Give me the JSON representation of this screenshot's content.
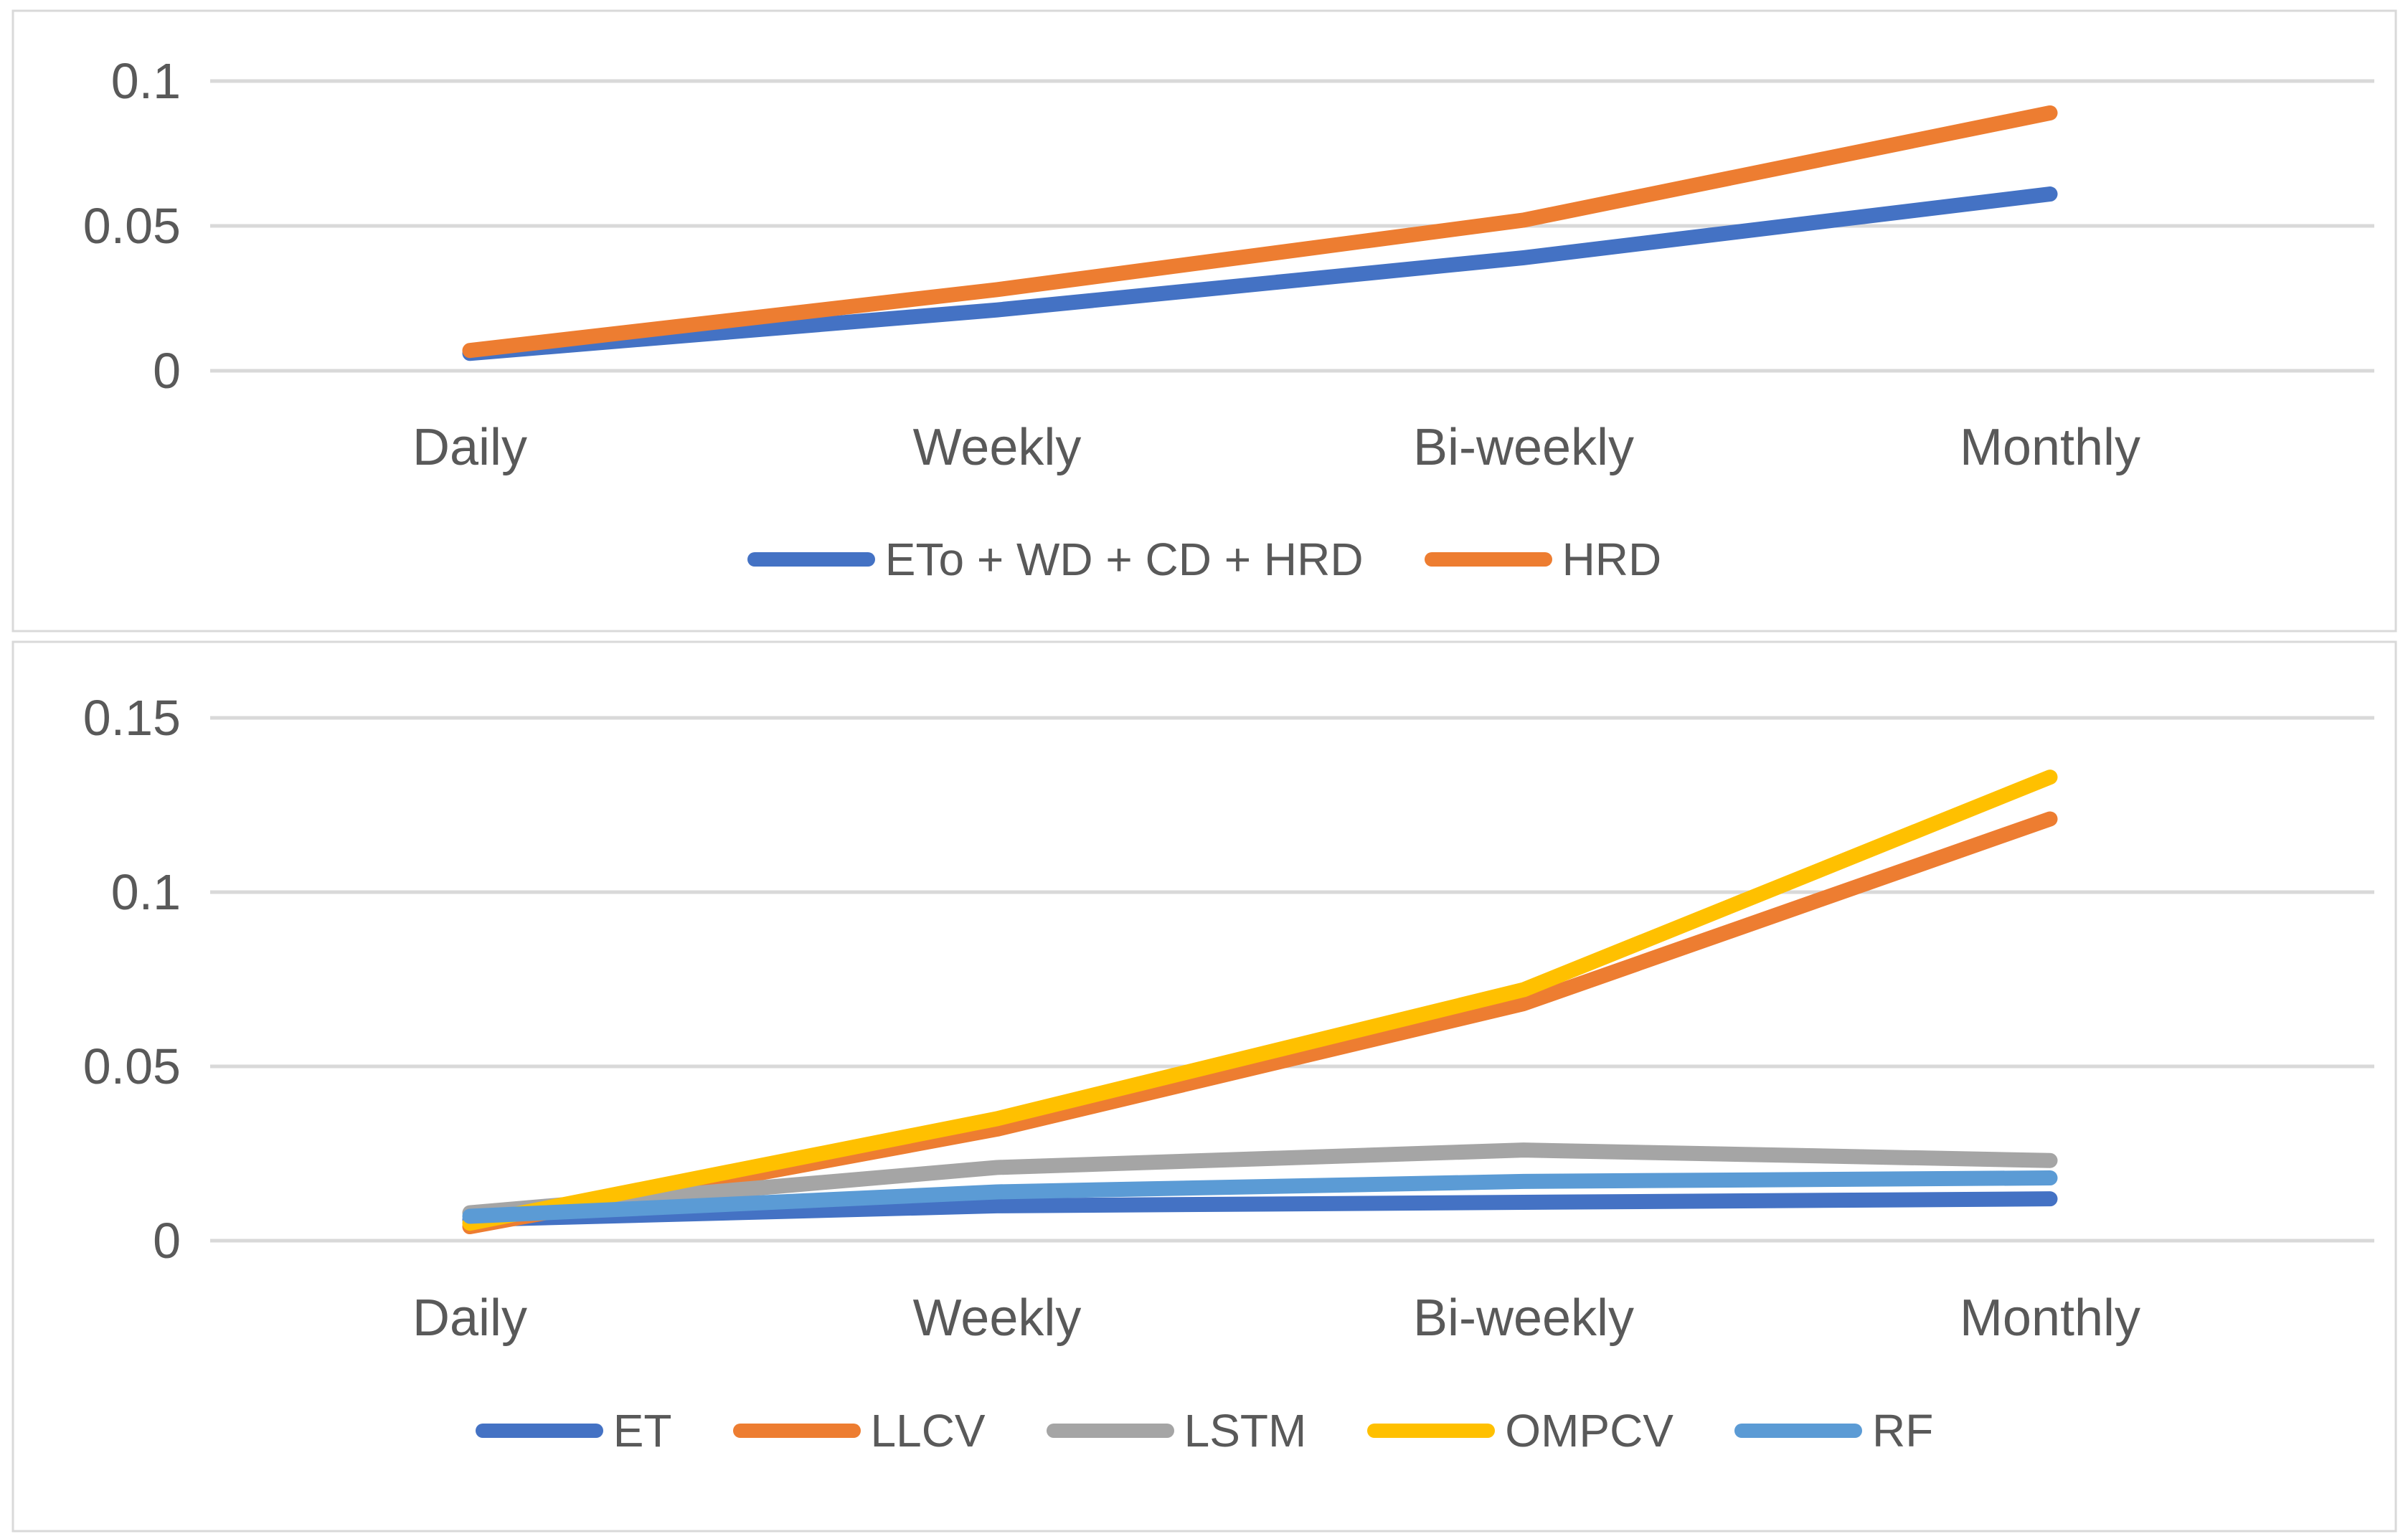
{
  "page": {
    "background": "#FFFFFF",
    "border_color": "#D9D9D9",
    "gridline_color": "#D9D9D9",
    "text_color": "#595959"
  },
  "chart_data": [
    {
      "type": "line",
      "title": "",
      "categories": [
        "Daily",
        "Weekly",
        "Bi-weekly",
        "Monthly"
      ],
      "y_ticks": [
        0,
        0.05,
        0.1
      ],
      "ylim": [
        0,
        0.1
      ],
      "grid": true,
      "legend_position": "bottom",
      "series": [
        {
          "name": "ETo + WD + CD + HRD",
          "color": "#4472C4",
          "values": [
            0.006,
            0.021,
            0.039,
            0.061
          ]
        },
        {
          "name": "HRD",
          "color": "#ED7D31",
          "values": [
            0.007,
            0.028,
            0.052,
            0.089
          ]
        }
      ]
    },
    {
      "type": "line",
      "title": "",
      "categories": [
        "Daily",
        "Weekly",
        "Bi-weekly",
        "Monthly"
      ],
      "y_ticks": [
        0,
        0.05,
        0.1,
        0.15
      ],
      "ylim": [
        0,
        0.15
      ],
      "grid": true,
      "legend_position": "bottom",
      "series": [
        {
          "name": "ET",
          "color": "#4472C4",
          "values": [
            0.006,
            0.01,
            0.011,
            0.012
          ]
        },
        {
          "name": "LLCV",
          "color": "#ED7D31",
          "values": [
            0.004,
            0.032,
            0.068,
            0.121
          ]
        },
        {
          "name": "LSTM",
          "color": "#A5A5A5",
          "values": [
            0.008,
            0.021,
            0.026,
            0.023
          ]
        },
        {
          "name": "OMPCV",
          "color": "#FFC000",
          "values": [
            0.005,
            0.035,
            0.072,
            0.133
          ]
        },
        {
          "name": "RF",
          "color": "#5B9BD5",
          "values": [
            0.007,
            0.014,
            0.017,
            0.018
          ]
        }
      ]
    }
  ]
}
